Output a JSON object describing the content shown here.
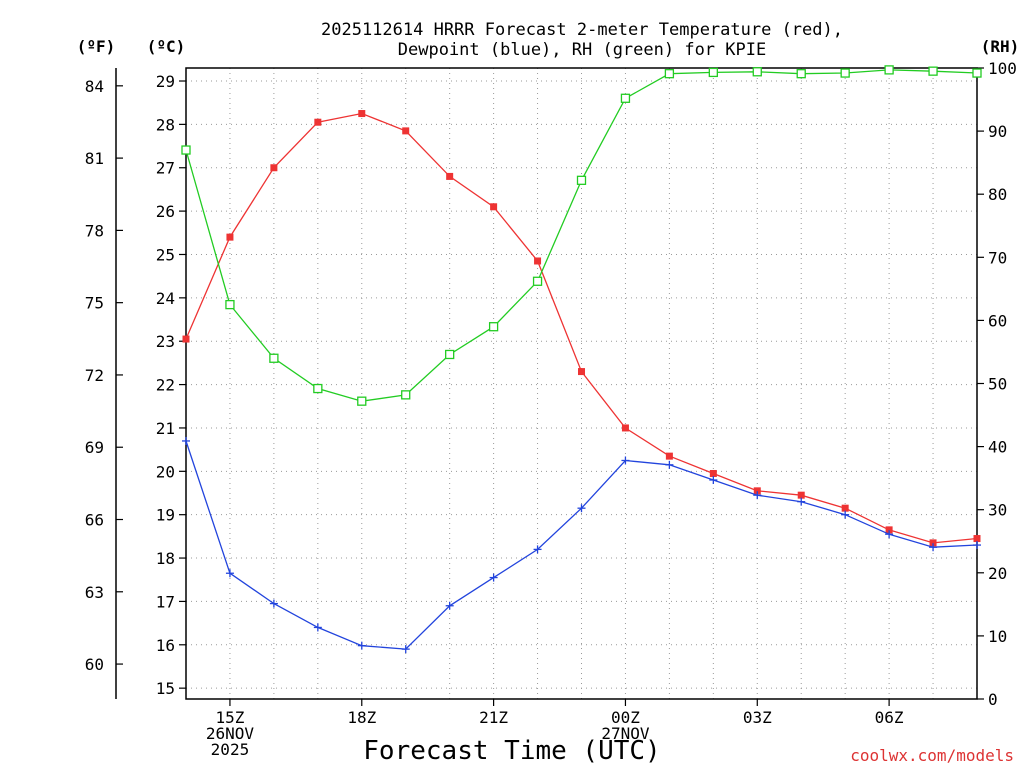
{
  "chart_data": {
    "type": "line",
    "title_line1": "2025112614 HRRR Forecast 2-meter Temperature (red),",
    "title_line2": "Dewpoint (blue), RH (green) for KPIE",
    "xlabel": "Forecast Time (UTC)",
    "credit": "coolwx.com/models",
    "unit_f": "(ºF)",
    "unit_c": "(ºC)",
    "unit_rh": "(RH)",
    "x_hours": [
      14,
      15,
      16,
      17,
      18,
      19,
      20,
      21,
      22,
      23,
      24,
      25,
      26,
      27,
      28,
      29,
      30,
      31,
      32
    ],
    "xlim": [
      14,
      32
    ],
    "x_ticks": [
      {
        "hour": 15,
        "lines": [
          "15Z",
          "26NOV",
          "2025"
        ]
      },
      {
        "hour": 18,
        "lines": [
          "18Z"
        ]
      },
      {
        "hour": 21,
        "lines": [
          "21Z"
        ]
      },
      {
        "hour": 24,
        "lines": [
          "00Z",
          "27NOV"
        ]
      },
      {
        "hour": 27,
        "lines": [
          "03Z"
        ]
      },
      {
        "hour": 30,
        "lines": [
          "06Z"
        ]
      }
    ],
    "celsius_axis": {
      "ylim": [
        14.75,
        29.3
      ],
      "ticks": [
        15,
        16,
        17,
        18,
        19,
        20,
        21,
        22,
        23,
        24,
        25,
        26,
        27,
        28,
        29
      ]
    },
    "fahrenheit_axis": {
      "ticks": [
        60,
        63,
        66,
        69,
        72,
        75,
        78,
        81,
        84
      ]
    },
    "rh_axis": {
      "ylim": [
        0,
        100
      ],
      "ticks": [
        0,
        10,
        20,
        30,
        40,
        50,
        60,
        70,
        80,
        90,
        100
      ]
    },
    "series": [
      {
        "name": "2-meter Temperature",
        "axis": "C",
        "color": "#ee3333",
        "marker": "filled-square",
        "values": [
          23.05,
          25.4,
          27.0,
          28.05,
          28.25,
          27.85,
          26.8,
          26.1,
          24.85,
          22.3,
          21.0,
          20.35,
          19.95,
          19.55,
          19.45,
          19.15,
          18.65,
          18.35,
          18.45
        ]
      },
      {
        "name": "Dewpoint",
        "axis": "C",
        "color": "#2244dd",
        "marker": "plus",
        "values": [
          20.7,
          17.65,
          16.95,
          16.4,
          15.98,
          15.9,
          16.9,
          17.55,
          18.2,
          19.15,
          20.25,
          20.15,
          19.8,
          19.45,
          19.3,
          19.0,
          18.55,
          18.25,
          18.3
        ]
      },
      {
        "name": "RH",
        "axis": "RH",
        "color": "#22cc22",
        "marker": "open-square",
        "values": [
          87.0,
          62.5,
          54.0,
          49.2,
          47.2,
          48.2,
          54.6,
          59.0,
          66.2,
          82.2,
          95.2,
          99.1,
          99.3,
          99.4,
          99.1,
          99.2,
          99.7,
          99.5,
          99.2
        ]
      }
    ]
  }
}
